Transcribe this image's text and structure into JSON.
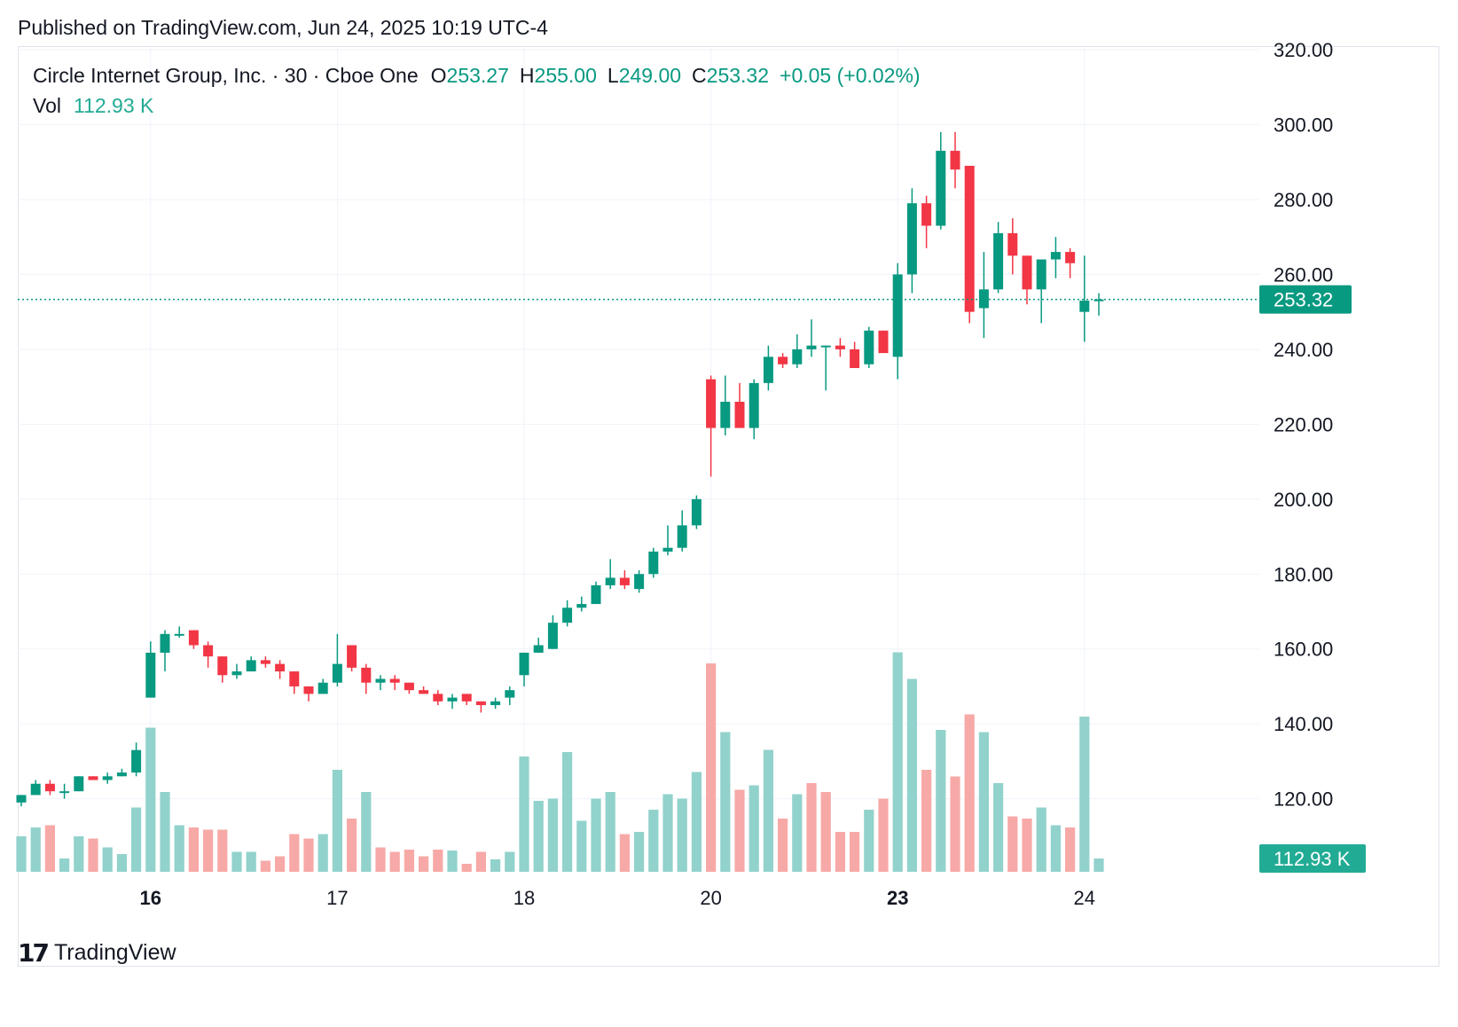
{
  "header": {
    "published": "Published on TradingView.com, Jun 24, 2025 10:19 UTC-4"
  },
  "legend": {
    "symbol": "Circle Internet Group, Inc. · 30 · Cboe One",
    "open_label": "O",
    "open": "253.27",
    "high_label": "H",
    "high": "255.00",
    "low_label": "L",
    "low": "249.00",
    "close_label": "C",
    "close": "253.32",
    "change": "+0.05 (+0.02%)",
    "vol_label": "Vol",
    "vol_value": "112.93 K"
  },
  "footer": {
    "brand": "TradingView",
    "logo_icon": "tradingview-logo-icon"
  },
  "colors": {
    "up": "#089981",
    "down": "#f23645",
    "vol_up": "#92d2cc",
    "vol_down": "#f7a9a7",
    "grid": "#f0f3fa",
    "axis_text": "#131722"
  },
  "chart_data": {
    "type": "candlestick",
    "interval": "30",
    "y_axis": {
      "ticks": [
        120,
        140,
        160,
        180,
        200,
        220,
        240,
        260,
        280,
        300,
        320
      ],
      "tick_labels": [
        "120.00",
        "140.00",
        "160.00",
        "180.00",
        "200.00",
        "220.00",
        "240.00",
        "260.00",
        "280.00",
        "300.00",
        "320.00"
      ],
      "position": "right"
    },
    "x_axis": {
      "labels": [
        {
          "label": "16",
          "index": 9,
          "bold": true
        },
        {
          "label": "17",
          "index": 22,
          "bold": false
        },
        {
          "label": "18",
          "index": 35,
          "bold": false
        },
        {
          "label": "20",
          "index": 48,
          "bold": false
        },
        {
          "label": "23",
          "index": 61,
          "bold": true
        },
        {
          "label": "24",
          "index": 74,
          "bold": false
        }
      ]
    },
    "last_price": 253.32,
    "last_price_label": "253.32",
    "last_volume_label": "112.93 K",
    "ohlc": [
      [
        119,
        121,
        118,
        121
      ],
      [
        121,
        125,
        121,
        124
      ],
      [
        124,
        125,
        121,
        122
      ],
      [
        122,
        124,
        120,
        122
      ],
      [
        122,
        126,
        122,
        126
      ],
      [
        126,
        126,
        125,
        125
      ],
      [
        125,
        127,
        124,
        126
      ],
      [
        126,
        128,
        126,
        127
      ],
      [
        127,
        135,
        126,
        133
      ],
      [
        147,
        162,
        147,
        159
      ],
      [
        159,
        165,
        154,
        164
      ],
      [
        164,
        166,
        163,
        164
      ],
      [
        165,
        165,
        160,
        161
      ],
      [
        161,
        162,
        155,
        158
      ],
      [
        158,
        158,
        151,
        153
      ],
      [
        153,
        156,
        152,
        154
      ],
      [
        154,
        158,
        154,
        157
      ],
      [
        157,
        158,
        155,
        156
      ],
      [
        156,
        157,
        152,
        154
      ],
      [
        154,
        154,
        148,
        150
      ],
      [
        150,
        150,
        146,
        148
      ],
      [
        148,
        152,
        148,
        151
      ],
      [
        151,
        164,
        150,
        156
      ],
      [
        161,
        161,
        154,
        155
      ],
      [
        155,
        156,
        148,
        151
      ],
      [
        151,
        153,
        149,
        152
      ],
      [
        152,
        153,
        149,
        151
      ],
      [
        151,
        151,
        148,
        149
      ],
      [
        149,
        150,
        148,
        148
      ],
      [
        148,
        149,
        145,
        146
      ],
      [
        146,
        148,
        144,
        147
      ],
      [
        148,
        148,
        145,
        146
      ],
      [
        146,
        146,
        143,
        145
      ],
      [
        145,
        147,
        144,
        146
      ],
      [
        147,
        150,
        145,
        149
      ],
      [
        153,
        159,
        150,
        159
      ],
      [
        159,
        163,
        159,
        161
      ],
      [
        160,
        169,
        160,
        167
      ],
      [
        167,
        173,
        166,
        171
      ],
      [
        171,
        174,
        170,
        172
      ],
      [
        172,
        178,
        172,
        177
      ],
      [
        177,
        184,
        176,
        179
      ],
      [
        179,
        181,
        176,
        177
      ],
      [
        176,
        181,
        175,
        180
      ],
      [
        180,
        187,
        179,
        186
      ],
      [
        186,
        193,
        185,
        187
      ],
      [
        187,
        197,
        186,
        193
      ],
      [
        193,
        201,
        192,
        200
      ],
      [
        232,
        233,
        206,
        219
      ],
      [
        219,
        233,
        217,
        226
      ],
      [
        226,
        231,
        219,
        219
      ],
      [
        219,
        232,
        216,
        231
      ],
      [
        231,
        241,
        229,
        238
      ],
      [
        238,
        239,
        235,
        236
      ],
      [
        236,
        244,
        235,
        240
      ],
      [
        240,
        248,
        238,
        241
      ],
      [
        241,
        241,
        229,
        241
      ],
      [
        241,
        243,
        238,
        240
      ],
      [
        240,
        242,
        235,
        235
      ],
      [
        236,
        246,
        235,
        245
      ],
      [
        245,
        245,
        240,
        239
      ],
      [
        238,
        263,
        232,
        260
      ],
      [
        260,
        283,
        255,
        279
      ],
      [
        279,
        281,
        267,
        273
      ],
      [
        273,
        298,
        272,
        293
      ],
      [
        293,
        298,
        283,
        288
      ],
      [
        289,
        289,
        247,
        250
      ],
      [
        251,
        266,
        243,
        256
      ],
      [
        256,
        274,
        255,
        271
      ],
      [
        271,
        275,
        260,
        265
      ],
      [
        265,
        265,
        252,
        256
      ],
      [
        256,
        264,
        247,
        264
      ],
      [
        264,
        270,
        259,
        266
      ],
      [
        266,
        267,
        259,
        263
      ],
      [
        250,
        265,
        242,
        253
      ],
      [
        253.27,
        255,
        249,
        253.32
      ]
    ],
    "volume_up": [
      true,
      true,
      false,
      true,
      true,
      false,
      true,
      true,
      true,
      true,
      true,
      true,
      false,
      false,
      false,
      true,
      true,
      false,
      false,
      false,
      false,
      true,
      true,
      false,
      true,
      false,
      false,
      false,
      false,
      false,
      true,
      false,
      false,
      true,
      true,
      true,
      true,
      true,
      true,
      true,
      true,
      true,
      false,
      true,
      true,
      true,
      true,
      true,
      false,
      true,
      false,
      true,
      true,
      false,
      true,
      false,
      false,
      false,
      false,
      true,
      false,
      true,
      true,
      false,
      true,
      false,
      false,
      true,
      true,
      false,
      false,
      true,
      true,
      false,
      true,
      true
    ],
    "volume_relative": [
      0.08,
      0.1,
      0.105,
      0.03,
      0.08,
      0.075,
      0.055,
      0.04,
      0.145,
      0.325,
      0.18,
      0.105,
      0.1,
      0.095,
      0.095,
      0.045,
      0.045,
      0.025,
      0.035,
      0.085,
      0.075,
      0.085,
      0.23,
      0.12,
      0.18,
      0.055,
      0.045,
      0.05,
      0.035,
      0.05,
      0.048,
      0.018,
      0.045,
      0.028,
      0.045,
      0.26,
      0.16,
      0.165,
      0.27,
      0.115,
      0.165,
      0.18,
      0.085,
      0.09,
      0.14,
      0.175,
      0.165,
      0.225,
      0.47,
      0.315,
      0.185,
      0.195,
      0.275,
      0.12,
      0.175,
      0.2,
      0.18,
      0.09,
      0.09,
      0.14,
      0.165,
      0.495,
      0.435,
      0.23,
      0.32,
      0.215,
      0.355,
      0.315,
      0.2,
      0.125,
      0.12,
      0.145,
      0.105,
      0.1,
      0.35,
      0.03
    ]
  }
}
